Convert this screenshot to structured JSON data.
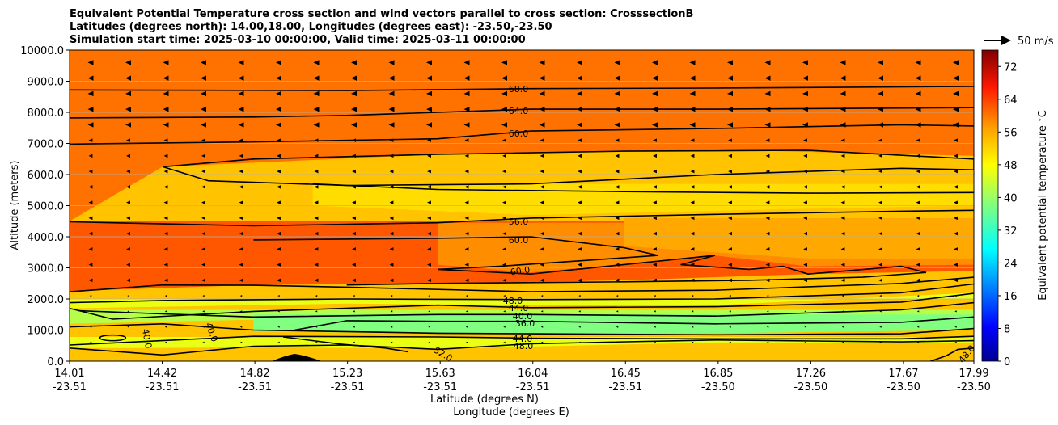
{
  "chart_data": {
    "type": "heatmap",
    "title": [
      "Equivalent Potential Temperature cross section and wind vectors parallel to cross section: CrosssectionB",
      "Latitudes (degrees north): 14.00,18.00, Longitudes (degrees east): -23.50,-23.50",
      "Simulation start time: 2025-03-10 00:00:00, Valid time: 2025-03-11 00:00:00"
    ],
    "ylabel": "Altitude (meters)",
    "xlabel_lat": "Latitude (degrees N)",
    "xlabel_lon": "Longitude (degrees E)",
    "ylim": [
      0,
      10000
    ],
    "y_ticks": [
      "0.0",
      "1000.0",
      "2000.0",
      "3000.0",
      "4000.0",
      "5000.0",
      "6000.0",
      "7000.0",
      "8000.0",
      "9000.0",
      "10000.0"
    ],
    "x_ticks_lat": [
      "14.01",
      "14.42",
      "14.82",
      "15.23",
      "15.63",
      "16.04",
      "16.45",
      "16.85",
      "17.26",
      "17.67",
      "17.99"
    ],
    "x_ticks_lon": [
      "-23.51",
      "-23.51",
      "-23.51",
      "-23.51",
      "-23.51",
      "-23.51",
      "-23.51",
      "-23.50",
      "-23.50",
      "-23.50",
      "-23.50"
    ],
    "grid": "horizontal",
    "colorbar": {
      "label": "Equivalent potential temperature $^\\circ$C",
      "range": [
        0,
        76
      ],
      "ticks": [
        "0",
        "8",
        "16",
        "24",
        "32",
        "40",
        "48",
        "56",
        "64",
        "72"
      ],
      "colormap": "jet",
      "colors": [
        "#00008f",
        "#0000ff",
        "#0080ff",
        "#00ffff",
        "#80ff80",
        "#ffff00",
        "#ff8000",
        "#ff0000",
        "#800000"
      ]
    },
    "wind_key": {
      "label": "50 m/s",
      "value": 50
    },
    "contour_labels": [
      "68.0",
      "64.0",
      "60.0",
      "56.0",
      "60.0",
      "60.0",
      "48.0",
      "44.0",
      "40.0",
      "36.0",
      "44.0",
      "48.0",
      "52.0",
      "40.0",
      "40.0",
      "48.0"
    ],
    "contours": [
      {
        "level": 68,
        "points": [
          [
            14.01,
            8720
          ],
          [
            15.23,
            8700
          ],
          [
            16.04,
            8760
          ],
          [
            16.85,
            8780
          ],
          [
            17.99,
            8830
          ]
        ]
      },
      {
        "level": 64,
        "points": [
          [
            14.01,
            7820
          ],
          [
            14.82,
            7850
          ],
          [
            15.23,
            7900
          ],
          [
            16.04,
            8100
          ],
          [
            16.85,
            8100
          ],
          [
            17.99,
            8150
          ]
        ]
      },
      {
        "level": 60,
        "points": [
          [
            14.01,
            6980
          ],
          [
            14.82,
            7050
          ],
          [
            15.63,
            7150
          ],
          [
            16.04,
            7400
          ],
          [
            16.85,
            7480
          ],
          [
            17.67,
            7600
          ],
          [
            17.99,
            7560
          ]
        ]
      },
      {
        "level": 56,
        "points": [
          [
            14.42,
            6250
          ],
          [
            14.62,
            5800
          ],
          [
            15.23,
            5650
          ],
          [
            16.04,
            5700
          ],
          [
            16.85,
            6000
          ],
          [
            17.67,
            6200
          ],
          [
            17.99,
            6150
          ],
          [
            17.99,
            6500
          ]
        ]
      },
      {
        "level": 56,
        "points": [
          [
            14.42,
            6250
          ],
          [
            14.82,
            6500
          ],
          [
            15.63,
            6650
          ],
          [
            16.45,
            6750
          ],
          [
            17.26,
            6780
          ],
          [
            17.99,
            6500
          ]
        ]
      },
      {
        "level": 52,
        "points": [
          [
            15.08,
            5700
          ],
          [
            15.63,
            5520
          ],
          [
            16.45,
            5450
          ],
          [
            17.26,
            5400
          ],
          [
            17.99,
            5420
          ]
        ]
      },
      {
        "level": 56,
        "points": [
          [
            14.01,
            4480
          ],
          [
            14.82,
            4350
          ],
          [
            15.63,
            4450
          ],
          [
            16.04,
            4600
          ],
          [
            16.85,
            4720
          ],
          [
            17.67,
            4820
          ],
          [
            17.99,
            4850
          ]
        ]
      },
      {
        "level": 60,
        "points": [
          [
            14.82,
            3900
          ],
          [
            15.63,
            3950
          ],
          [
            16.04,
            4000
          ],
          [
            16.45,
            3650
          ],
          [
            16.6,
            3400
          ],
          [
            16.3,
            3250
          ],
          [
            15.9,
            3050
          ],
          [
            15.63,
            2950
          ],
          [
            16.04,
            2800
          ],
          [
            16.85,
            3400
          ],
          [
            16.7,
            3100
          ],
          [
            17.0,
            2950
          ],
          [
            17.15,
            3050
          ],
          [
            17.26,
            2800
          ],
          [
            17.67,
            3050
          ],
          [
            17.78,
            2850
          ],
          [
            17.5,
            2700
          ],
          [
            17.0,
            2600
          ],
          [
            16.45,
            2550
          ],
          [
            15.63,
            2500
          ],
          [
            15.23,
            2450
          ]
        ]
      },
      {
        "level": 52,
        "points": [
          [
            14.01,
            2230
          ],
          [
            14.42,
            2450
          ],
          [
            14.82,
            2440
          ],
          [
            15.23,
            2380
          ],
          [
            16.04,
            2230
          ],
          [
            16.85,
            2280
          ],
          [
            17.67,
            2500
          ],
          [
            17.99,
            2700
          ]
        ]
      },
      {
        "level": 48,
        "points": [
          [
            14.01,
            1880
          ],
          [
            14.42,
            1950
          ],
          [
            15.23,
            2000
          ],
          [
            16.04,
            1980
          ],
          [
            16.85,
            2000
          ],
          [
            17.67,
            2200
          ],
          [
            17.99,
            2480
          ]
        ]
      },
      {
        "level": 44,
        "points": [
          [
            14.01,
            1700
          ],
          [
            14.2,
            1350
          ],
          [
            14.82,
            1600
          ],
          [
            15.63,
            1800
          ],
          [
            16.04,
            1720
          ],
          [
            16.85,
            1750
          ],
          [
            17.67,
            1900
          ],
          [
            17.99,
            2180
          ]
        ]
      },
      {
        "level": 40,
        "points": [
          [
            14.05,
            1620
          ],
          [
            14.42,
            1520
          ],
          [
            14.82,
            1420
          ],
          [
            15.63,
            1500
          ],
          [
            16.04,
            1500
          ],
          [
            16.85,
            1450
          ],
          [
            17.67,
            1650
          ],
          [
            17.99,
            1880
          ]
        ]
      },
      {
        "level": 36,
        "points": [
          [
            15.0,
            1000
          ],
          [
            15.23,
            1300
          ],
          [
            15.63,
            1280
          ],
          [
            16.04,
            1280
          ],
          [
            16.85,
            1200
          ],
          [
            17.67,
            1250
          ],
          [
            17.99,
            1420
          ]
        ]
      },
      {
        "level": 40,
        "points": [
          [
            14.01,
            1100
          ],
          [
            14.42,
            1200
          ],
          [
            14.82,
            1000
          ],
          [
            15.63,
            900
          ],
          [
            16.04,
            880
          ],
          [
            16.85,
            850
          ],
          [
            17.67,
            880
          ],
          [
            17.99,
            1050
          ]
        ]
      },
      {
        "level": 44,
        "points": [
          [
            14.01,
            520
          ],
          [
            14.82,
            800
          ],
          [
            15.63,
            780
          ],
          [
            16.04,
            740
          ],
          [
            16.85,
            720
          ],
          [
            17.67,
            720
          ],
          [
            17.99,
            800
          ]
        ]
      },
      {
        "level": 48,
        "points": [
          [
            14.01,
            420
          ],
          [
            14.42,
            200
          ],
          [
            14.82,
            480
          ],
          [
            15.23,
            520
          ],
          [
            15.63,
            380
          ],
          [
            16.04,
            560
          ],
          [
            16.85,
            680
          ],
          [
            17.67,
            620
          ],
          [
            17.99,
            660
          ]
        ]
      },
      {
        "level": 52,
        "points": [
          [
            14.95,
            780
          ],
          [
            15.2,
            550
          ],
          [
            15.4,
            420
          ],
          [
            15.5,
            300
          ]
        ]
      },
      {
        "level": 48,
        "points": [
          [
            17.8,
            0
          ],
          [
            17.87,
            180
          ],
          [
            17.92,
            380
          ],
          [
            17.99,
            420
          ]
        ]
      }
    ],
    "field_bands": [
      {
        "level": 52,
        "bottom": [
          [
            14.01,
            2200
          ],
          [
            14.82,
            2400
          ],
          [
            16.04,
            2200
          ],
          [
            16.85,
            2300
          ],
          [
            17.99,
            2700
          ]
        ],
        "top": [
          [
            14.01,
            10000
          ],
          [
            17.99,
            10000
          ]
        ]
      }
    ]
  }
}
